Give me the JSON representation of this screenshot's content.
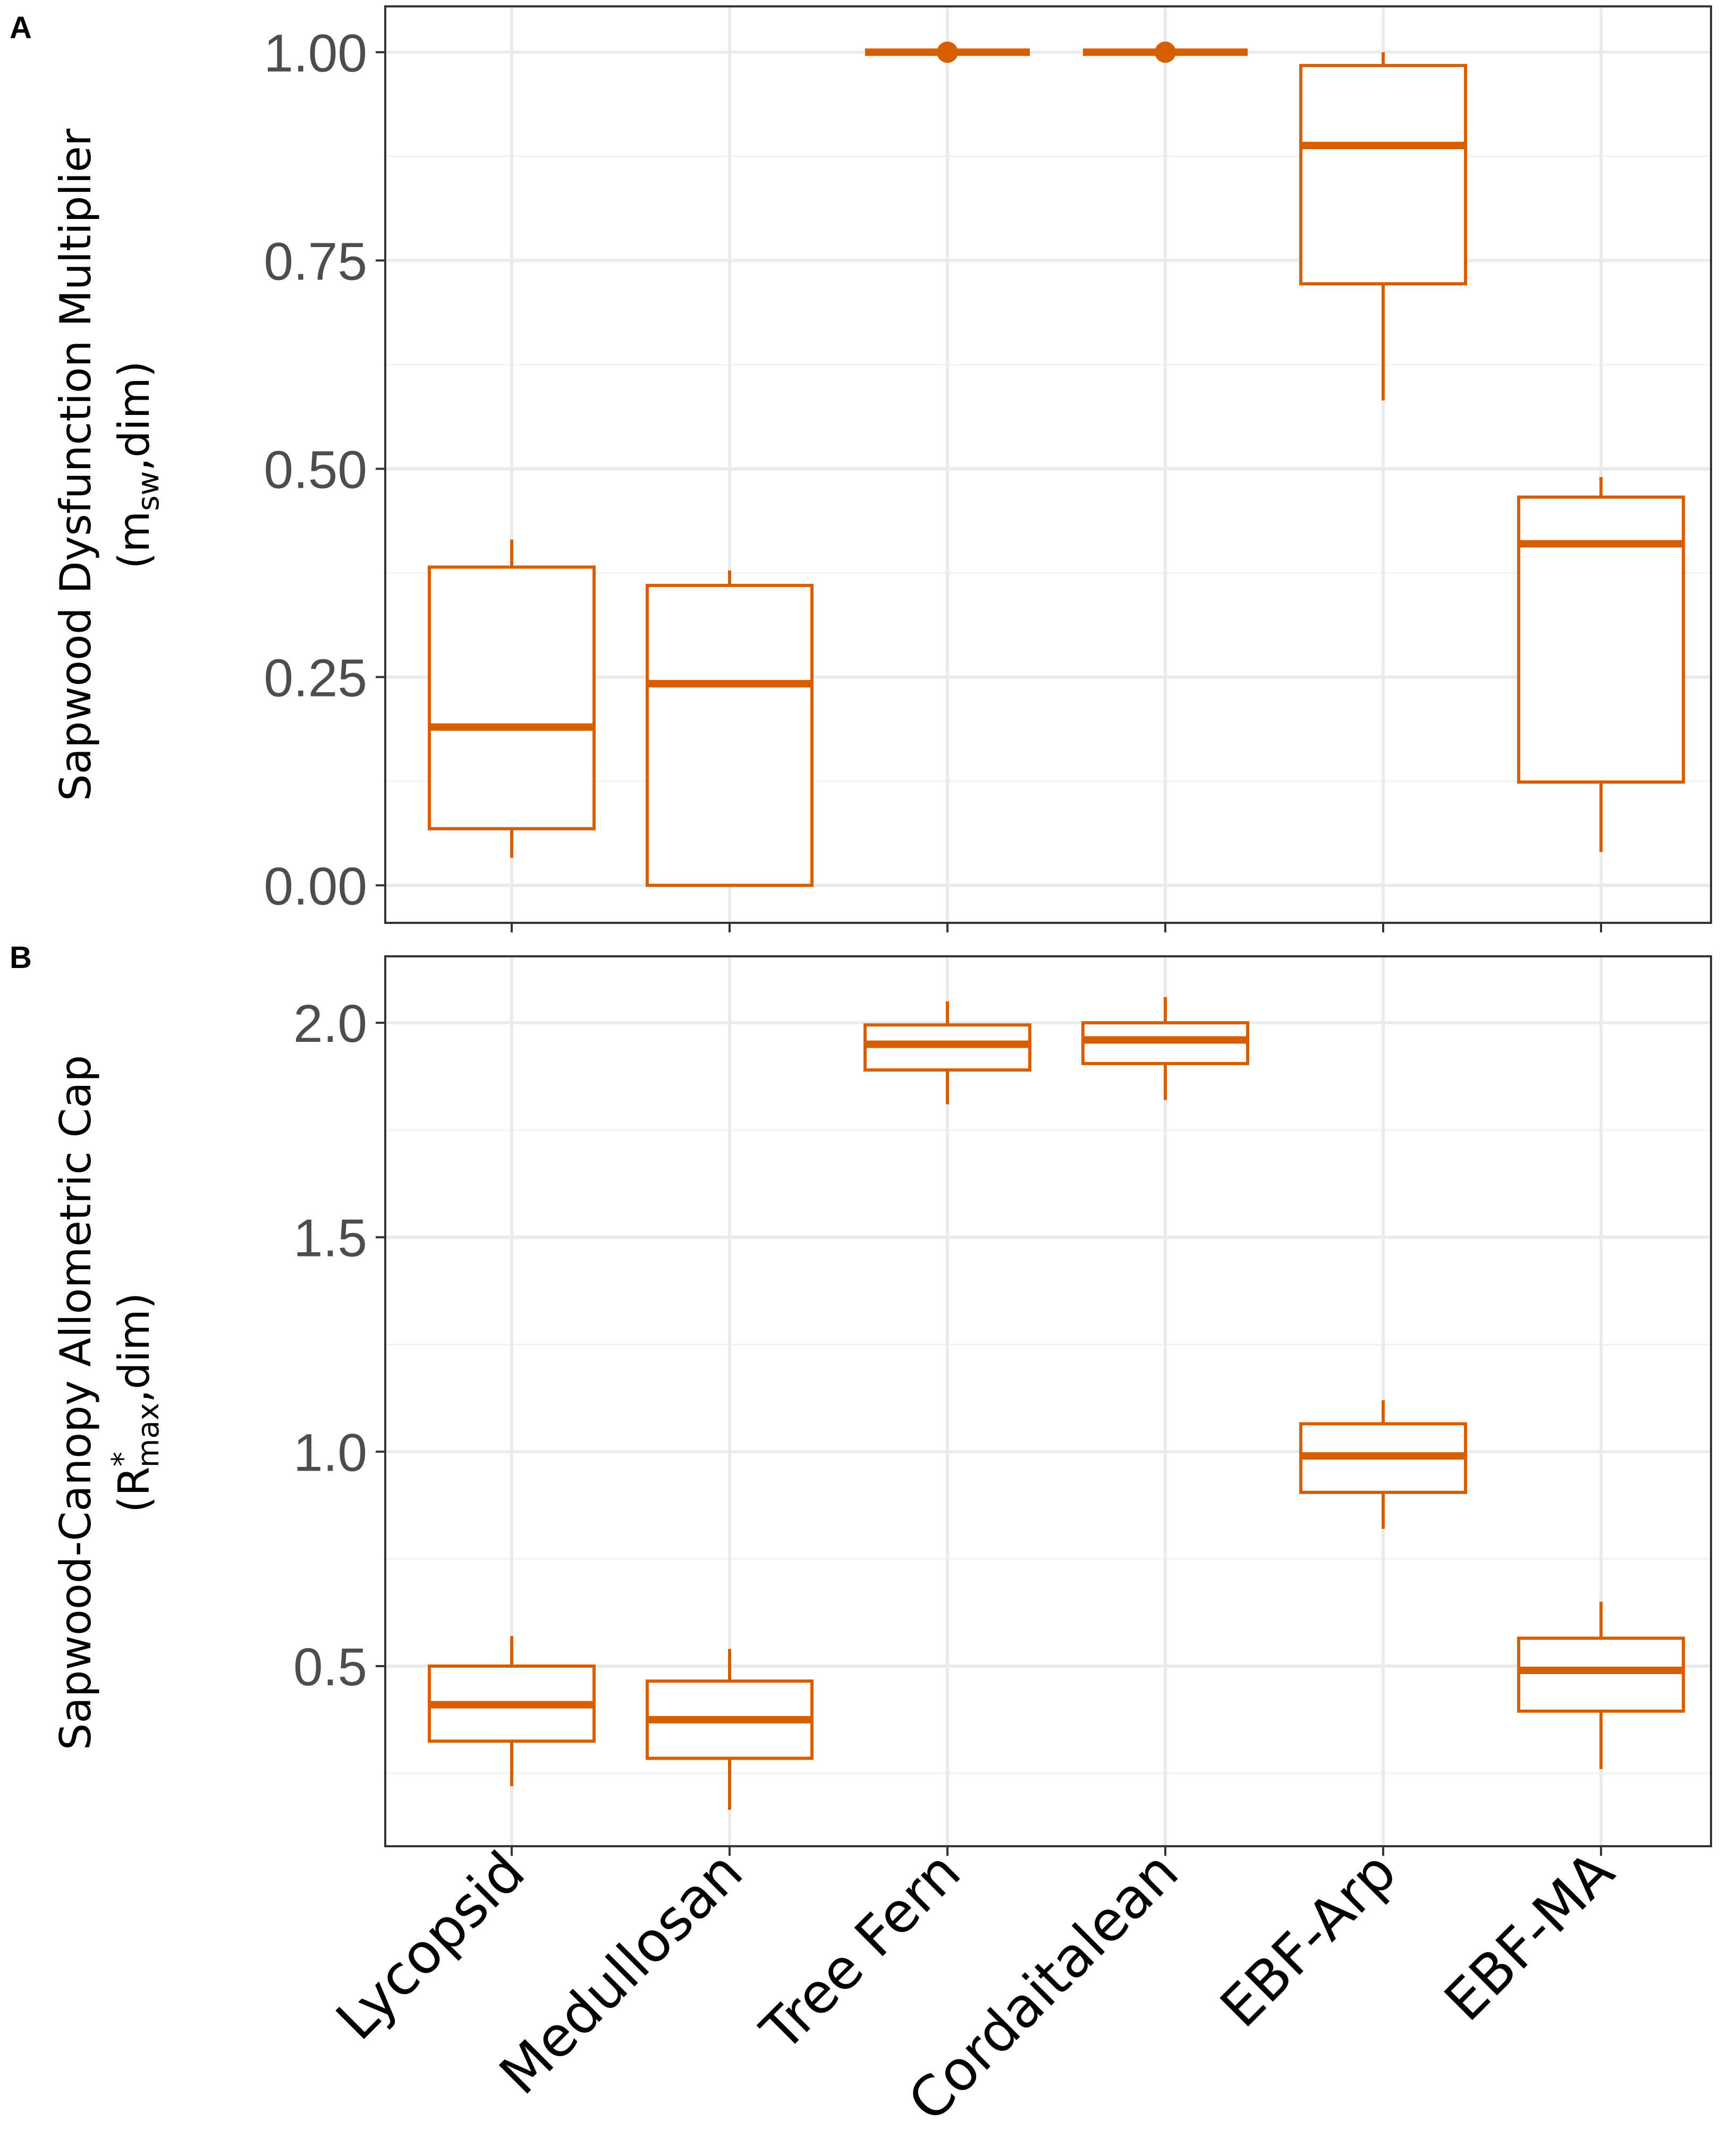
{
  "chart_data": [
    {
      "panel_label": "A",
      "type": "box",
      "categories": [
        "Lycopsid",
        "Medullosan",
        "Tree Fern",
        "Cordaitalean",
        "EBF-Arp",
        "EBF-MA"
      ],
      "ylabel_main": "Sapwood Dysfunction Multiplier",
      "ylabel_symbol_open": "(m",
      "ylabel_symbol_sub": "sw",
      "ylabel_symbol_close": ",dim)",
      "ylim": [
        -0.045,
        1.055
      ],
      "yticks": [
        0.0,
        0.25,
        0.5,
        0.75,
        1.0
      ],
      "ytick_labels": [
        "0.00",
        "0.25",
        "0.50",
        "0.75",
        "1.00"
      ],
      "color": "#d55e00",
      "boxes": [
        {
          "category": "Lycopsid",
          "whisker_low": 0.033,
          "q1": 0.068,
          "median": 0.19,
          "q3": 0.382,
          "whisker_high": 0.415
        },
        {
          "category": "Medullosan",
          "whisker_low": 0.0,
          "q1": 0.0,
          "median": 0.242,
          "q3": 0.36,
          "whisker_high": 0.378
        },
        {
          "category": "Tree Fern",
          "whisker_low": 1.0,
          "q1": 1.0,
          "median": 1.0,
          "q3": 1.0,
          "whisker_high": 1.0,
          "outliers": [
            1.0
          ]
        },
        {
          "category": "Cordaitalean",
          "whisker_low": 1.0,
          "q1": 1.0,
          "median": 1.0,
          "q3": 1.0,
          "whisker_high": 1.0,
          "outliers": [
            1.0
          ]
        },
        {
          "category": "EBF-Arp",
          "whisker_low": 0.582,
          "q1": 0.722,
          "median": 0.888,
          "q3": 0.984,
          "whisker_high": 1.0
        },
        {
          "category": "EBF-MA",
          "whisker_low": 0.04,
          "q1": 0.124,
          "median": 0.41,
          "q3": 0.466,
          "whisker_high": 0.49
        }
      ]
    },
    {
      "panel_label": "B",
      "type": "box",
      "categories": [
        "Lycopsid",
        "Medullosan",
        "Tree Fern",
        "Cordaitalean",
        "EBF-Arp",
        "EBF-MA"
      ],
      "ylabel_main": "Sapwood-Canopy Allometric Cap",
      "ylabel_symbol_open": "(R",
      "ylabel_symbol_sup": "*",
      "ylabel_symbol_sub": "max",
      "ylabel_symbol_close": ",dim)",
      "ylim": [
        0.08,
        2.155
      ],
      "yticks": [
        0.5,
        1.0,
        1.5,
        2.0
      ],
      "ytick_labels": [
        "0.5",
        "1.0",
        "1.5",
        "2.0"
      ],
      "color": "#d55e00",
      "boxes": [
        {
          "category": "Lycopsid",
          "whisker_low": 0.22,
          "q1": 0.325,
          "median": 0.41,
          "q3": 0.5,
          "whisker_high": 0.57
        },
        {
          "category": "Medullosan",
          "whisker_low": 0.165,
          "q1": 0.285,
          "median": 0.375,
          "q3": 0.465,
          "whisker_high": 0.54
        },
        {
          "category": "Tree Fern",
          "whisker_low": 1.81,
          "q1": 1.89,
          "median": 1.95,
          "q3": 1.995,
          "whisker_high": 2.05
        },
        {
          "category": "Cordaitalean",
          "whisker_low": 1.82,
          "q1": 1.905,
          "median": 1.96,
          "q3": 2.0,
          "whisker_high": 2.06
        },
        {
          "category": "EBF-Arp",
          "whisker_low": 0.82,
          "q1": 0.905,
          "median": 0.99,
          "q3": 1.065,
          "whisker_high": 1.12
        },
        {
          "category": "EBF-MA",
          "whisker_low": 0.26,
          "q1": 0.395,
          "median": 0.49,
          "q3": 0.565,
          "whisker_high": 0.65
        }
      ]
    }
  ]
}
